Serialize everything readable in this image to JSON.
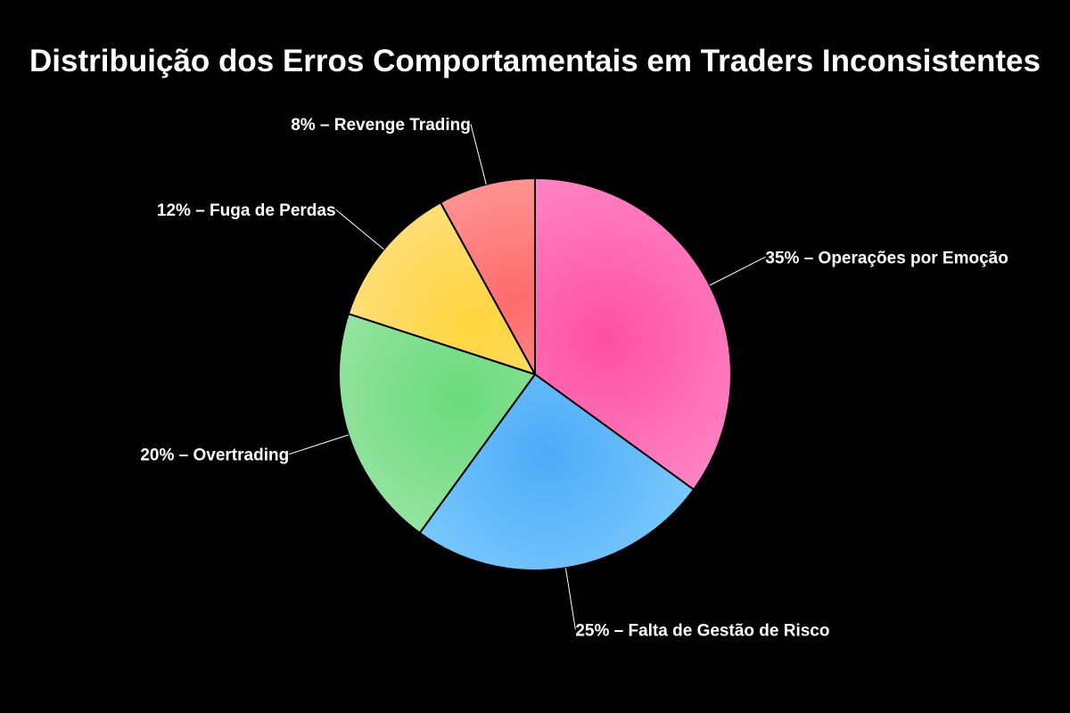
{
  "chart_data": {
    "type": "pie",
    "title": "Distribuição dos Erros Comportamentais em Traders Inconsistentes",
    "start_angle": "top",
    "direction": "clockwise",
    "slices": [
      {
        "label": "35% – Operações por Emoção",
        "value": 35,
        "color": "#ff4fa0",
        "color_outer": "#ff88c8"
      },
      {
        "label": "25% – Falta de Gestão de Risco",
        "value": 25,
        "color": "#4dabf7",
        "color_outer": "#82cffe"
      },
      {
        "label": "20% – Overtrading",
        "value": 20,
        "color": "#69db7c",
        "color_outer": "#a3e6ab"
      },
      {
        "label": "12% – Fuga de Perdas",
        "value": 12,
        "color": "#ffd43b",
        "color_outer": "#ffe394"
      },
      {
        "label": "8% – Revenge Trading",
        "value": 8,
        "color": "#ff6b6b",
        "color_outer": "#ffa8a8"
      }
    ],
    "background": "#000000",
    "legend": "none"
  }
}
